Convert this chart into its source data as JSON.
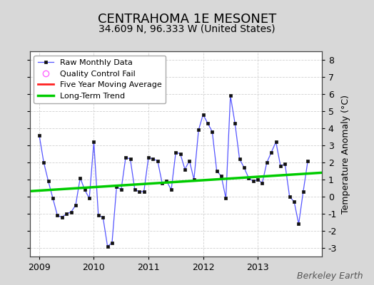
{
  "title": "CENTRAHOMA 1E MESONET",
  "subtitle": "34.609 N, 96.333 W (United States)",
  "ylabel": "Temperature Anomaly (°C)",
  "watermark": "Berkeley Earth",
  "ylim": [
    -3.5,
    8.5
  ],
  "yticks": [
    -3,
    -2,
    -1,
    0,
    1,
    2,
    3,
    4,
    5,
    6,
    7,
    8
  ],
  "xlim_start": 2008.83,
  "xlim_end": 2014.17,
  "xtick_labels": [
    "2009",
    "2010",
    "2011",
    "2012",
    "2013"
  ],
  "xtick_positions": [
    2009,
    2010,
    2011,
    2012,
    2013
  ],
  "background_color": "#d8d8d8",
  "plot_bg_color": "#ffffff",
  "raw_data_color": "#5555ff",
  "raw_data_marker_color": "#111111",
  "trend_color": "#00cc00",
  "moving_avg_color": "#ff2222",
  "qc_fail_color": "#ff66ff",
  "legend_entries": [
    "Raw Monthly Data",
    "Quality Control Fail",
    "Five Year Moving Average",
    "Long-Term Trend"
  ],
  "raw_x": [
    2009.0,
    2009.083,
    2009.167,
    2009.25,
    2009.333,
    2009.417,
    2009.5,
    2009.583,
    2009.667,
    2009.75,
    2009.833,
    2009.917,
    2010.0,
    2010.083,
    2010.167,
    2010.25,
    2010.333,
    2010.417,
    2010.5,
    2010.583,
    2010.667,
    2010.75,
    2010.833,
    2010.917,
    2011.0,
    2011.083,
    2011.167,
    2011.25,
    2011.333,
    2011.417,
    2011.5,
    2011.583,
    2011.667,
    2011.75,
    2011.833,
    2011.917,
    2012.0,
    2012.083,
    2012.167,
    2012.25,
    2012.333,
    2012.417,
    2012.5,
    2012.583,
    2012.667,
    2012.75,
    2012.833,
    2012.917,
    2013.0,
    2013.083,
    2013.167,
    2013.25,
    2013.333,
    2013.417,
    2013.5,
    2013.583,
    2013.667,
    2013.75,
    2013.833,
    2013.917
  ],
  "raw_y": [
    3.6,
    2.0,
    0.9,
    -0.1,
    -1.1,
    -1.2,
    -1.0,
    -0.9,
    -0.5,
    1.1,
    0.4,
    -0.1,
    3.2,
    -1.1,
    -1.2,
    -2.9,
    -2.7,
    0.6,
    0.4,
    2.3,
    2.2,
    0.4,
    0.3,
    0.3,
    2.3,
    2.2,
    2.1,
    0.8,
    0.9,
    0.4,
    2.6,
    2.5,
    1.6,
    2.1,
    1.0,
    3.9,
    4.8,
    4.3,
    3.8,
    1.5,
    1.2,
    -0.1,
    5.9,
    4.3,
    2.2,
    1.7,
    1.1,
    0.9,
    1.0,
    0.8,
    2.0,
    2.6,
    3.2,
    1.8,
    1.9,
    0.0,
    -0.3,
    -1.6,
    0.3,
    2.1
  ],
  "trend_x": [
    2008.83,
    2014.17
  ],
  "trend_y": [
    0.32,
    1.4
  ],
  "grid_color": "#cccccc",
  "grid_alpha": 0.9,
  "font_size_title": 13,
  "font_size_subtitle": 10,
  "font_size_axis": 9,
  "font_size_tick": 9,
  "font_size_legend": 8,
  "font_size_watermark": 9
}
